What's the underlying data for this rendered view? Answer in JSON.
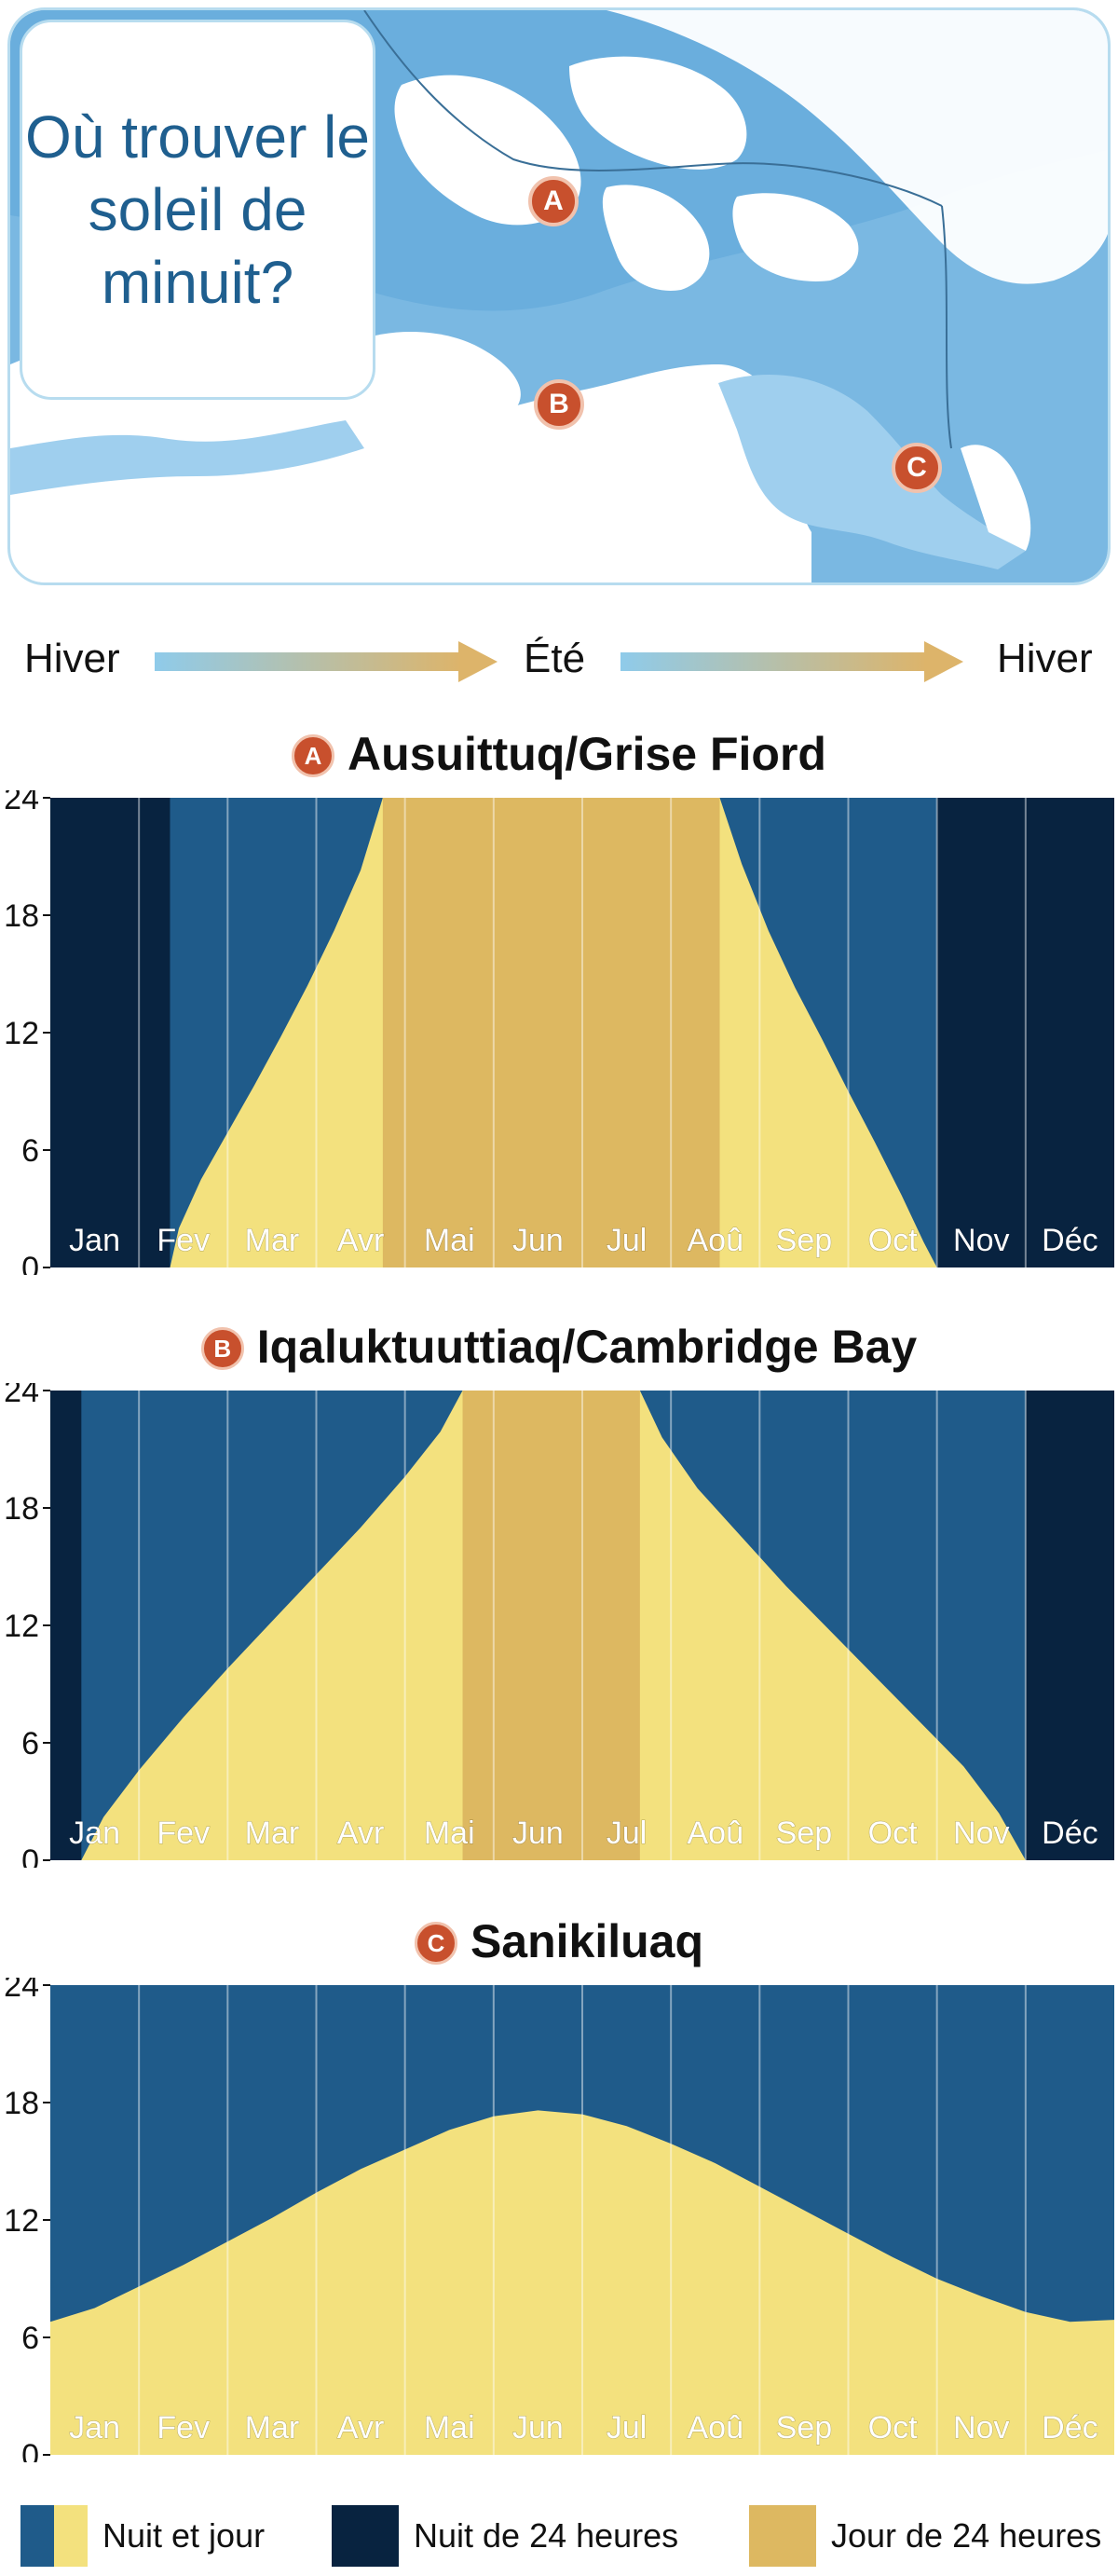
{
  "map": {
    "title": "Où trouver le soleil de minuit?",
    "markers": [
      "A",
      "B",
      "C"
    ]
  },
  "seasons": [
    "Hiver",
    "Été",
    "Hiver"
  ],
  "colors": {
    "night_and_day_dark": "#1f5b8a",
    "night_and_day_light": "#f3e17e",
    "night_24": "#082340",
    "day_24": "#ddb861"
  },
  "legend": [
    {
      "label": "Nuit et jour",
      "key": "nightday"
    },
    {
      "label": "Nuit de 24 heures",
      "key": "night24"
    },
    {
      "label": "Jour de 24 heures",
      "key": "day24"
    }
  ],
  "chart_data": [
    {
      "type": "area",
      "badge": "A",
      "title": "Ausuittuq/Grise Fiord",
      "categories": [
        "Jan",
        "Fev",
        "Mar",
        "Avr",
        "Mai",
        "Jun",
        "Jul",
        "Aoû",
        "Sep",
        "Oct",
        "Nov",
        "Déc"
      ],
      "yticks": [
        0,
        6,
        12,
        18,
        24
      ],
      "ylim": [
        0,
        24
      ],
      "night24_ranges": [
        [
          0,
          1.35
        ],
        [
          10.0,
          12.0
        ]
      ],
      "day24_ranges": [
        [
          3.75,
          7.55
        ]
      ],
      "daylight": {
        "x": [
          1.35,
          1.45,
          1.7,
          2.0,
          2.3,
          2.6,
          2.9,
          3.2,
          3.5,
          3.75,
          7.55,
          7.8,
          8.1,
          8.4,
          8.7,
          9.0,
          9.3,
          9.6,
          9.85,
          10.0
        ],
        "y": [
          0,
          2.0,
          4.5,
          6.9,
          9.3,
          11.8,
          14.4,
          17.2,
          20.3,
          24,
          24,
          20.6,
          17.2,
          14.3,
          11.7,
          9.0,
          6.4,
          3.7,
          1.3,
          0
        ]
      }
    },
    {
      "type": "area",
      "badge": "B",
      "title": "Iqaluktuuttiaq/Cambridge Bay",
      "categories": [
        "Jan",
        "Fev",
        "Mar",
        "Avr",
        "Mai",
        "Jun",
        "Jul",
        "Aoû",
        "Sep",
        "Oct",
        "Nov",
        "Déc"
      ],
      "yticks": [
        0,
        6,
        12,
        18,
        24
      ],
      "ylim": [
        0,
        24
      ],
      "night24_ranges": [
        [
          0,
          0.35
        ],
        [
          11.0,
          12.0
        ]
      ],
      "day24_ranges": [
        [
          4.65,
          6.65
        ]
      ],
      "daylight": {
        "x": [
          0.35,
          0.6,
          1.0,
          1.5,
          2.0,
          2.5,
          3.0,
          3.5,
          4.0,
          4.4,
          4.65,
          6.65,
          6.9,
          7.3,
          7.8,
          8.3,
          8.8,
          9.3,
          9.8,
          10.3,
          10.7,
          11.0
        ],
        "y": [
          0,
          2.2,
          4.6,
          7.3,
          9.8,
          12.2,
          14.6,
          17.0,
          19.6,
          21.9,
          24,
          24,
          21.6,
          19.0,
          16.5,
          14.0,
          11.7,
          9.4,
          7.1,
          4.8,
          2.4,
          0
        ]
      }
    },
    {
      "type": "area",
      "badge": "C",
      "title": "Sanikiluaq",
      "categories": [
        "Jan",
        "Fev",
        "Mar",
        "Avr",
        "Mai",
        "Jun",
        "Jul",
        "Aoû",
        "Sep",
        "Oct",
        "Nov",
        "Déc"
      ],
      "yticks": [
        0,
        6,
        12,
        18,
        24
      ],
      "ylim": [
        0,
        24
      ],
      "night24_ranges": [],
      "day24_ranges": [],
      "daylight": {
        "x": [
          0,
          0.5,
          1,
          1.5,
          2,
          2.5,
          3,
          3.5,
          4,
          4.5,
          5,
          5.5,
          6,
          6.5,
          7,
          7.5,
          8,
          8.5,
          9,
          9.5,
          10,
          10.5,
          11,
          11.5,
          12
        ],
        "y": [
          6.8,
          7.5,
          8.6,
          9.7,
          10.9,
          12.1,
          13.4,
          14.6,
          15.6,
          16.6,
          17.3,
          17.6,
          17.4,
          16.8,
          15.9,
          14.9,
          13.7,
          12.5,
          11.3,
          10.1,
          9.0,
          8.1,
          7.3,
          6.8,
          6.9
        ]
      }
    }
  ]
}
